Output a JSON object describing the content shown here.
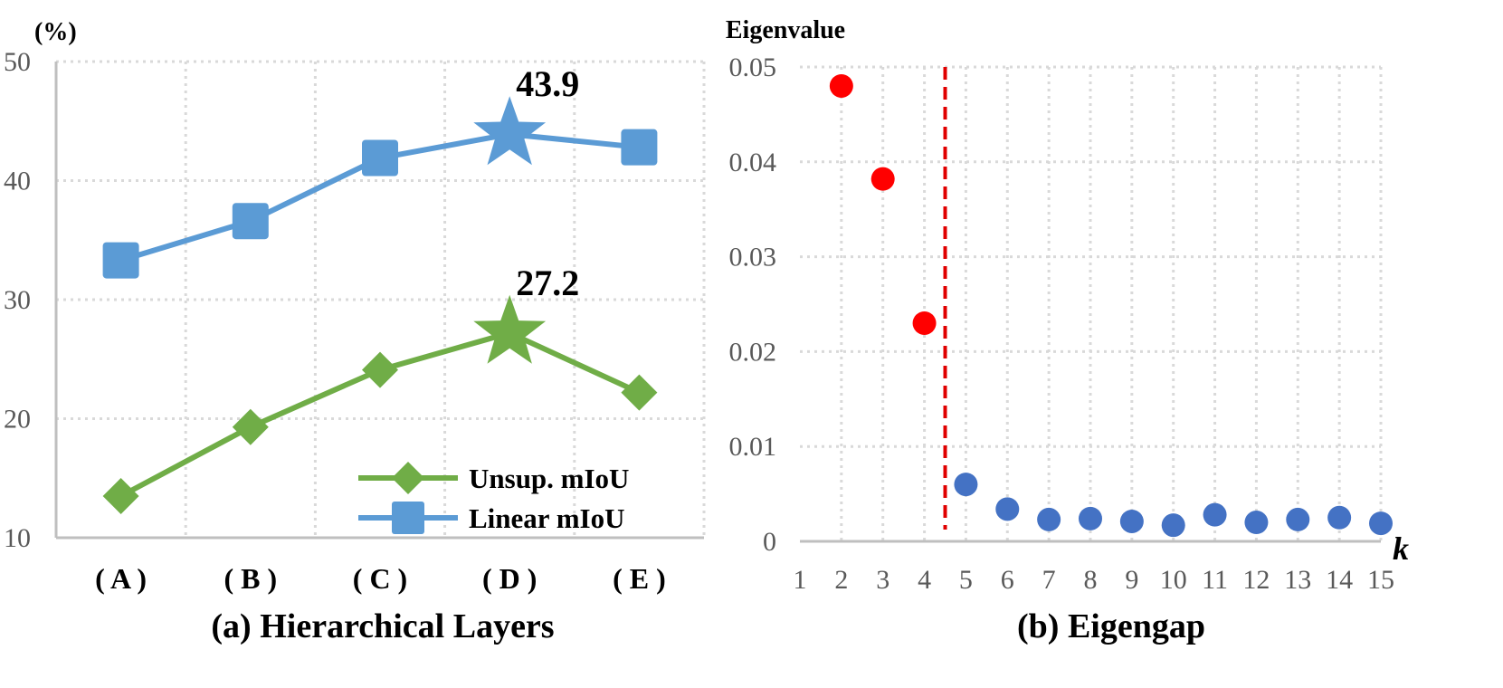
{
  "chart_data": [
    {
      "type": "line",
      "caption": "(a) Hierarchical Layers",
      "ylabel": "(%)",
      "ylim": [
        10,
        50
      ],
      "yticks": [
        10,
        20,
        30,
        40,
        50
      ],
      "grid": true,
      "categories": [
        "( A )",
        "( B )",
        "( C )",
        "( D )",
        "( E )"
      ],
      "series": [
        {
          "name": "Unsup. mIoU",
          "color": "#70ad47",
          "marker": "diamond",
          "values": [
            13.5,
            19.3,
            24.1,
            27.2,
            22.2
          ]
        },
        {
          "name": "Linear mIoU",
          "color": "#5b9bd5",
          "marker": "square",
          "values": [
            33.3,
            36.6,
            41.9,
            43.9,
            42.8
          ]
        }
      ],
      "annotations": [
        {
          "category": "( D )",
          "series": "Linear mIoU",
          "text": "43.9",
          "marker": "star"
        },
        {
          "category": "( D )",
          "series": "Unsup. mIoU",
          "text": "27.2",
          "marker": "star"
        }
      ],
      "legend": "bottom-right"
    },
    {
      "type": "scatter",
      "caption": "(b) Eigengap",
      "ylabel": "Eigenvalue",
      "xlabel": "k",
      "xlim": [
        1,
        15
      ],
      "ylim": [
        0,
        0.05
      ],
      "xticks": [
        1,
        2,
        3,
        4,
        5,
        6,
        7,
        8,
        9,
        10,
        11,
        12,
        13,
        14,
        15
      ],
      "yticks": [
        "0",
        "0.01",
        "0.02",
        "0.03",
        "0.04",
        "0.05"
      ],
      "grid": true,
      "threshold_x": 4.5,
      "threshold_color": "#e00000",
      "points": [
        {
          "x": 2,
          "y": 0.048,
          "color": "#ff0000"
        },
        {
          "x": 3,
          "y": 0.0382,
          "color": "#ff0000"
        },
        {
          "x": 4,
          "y": 0.023,
          "color": "#ff0000"
        },
        {
          "x": 5,
          "y": 0.006,
          "color": "#4472c4"
        },
        {
          "x": 6,
          "y": 0.0034,
          "color": "#4472c4"
        },
        {
          "x": 7,
          "y": 0.0023,
          "color": "#4472c4"
        },
        {
          "x": 8,
          "y": 0.0024,
          "color": "#4472c4"
        },
        {
          "x": 9,
          "y": 0.0021,
          "color": "#4472c4"
        },
        {
          "x": 10,
          "y": 0.0017,
          "color": "#4472c4"
        },
        {
          "x": 11,
          "y": 0.0028,
          "color": "#4472c4"
        },
        {
          "x": 12,
          "y": 0.002,
          "color": "#4472c4"
        },
        {
          "x": 13,
          "y": 0.0023,
          "color": "#4472c4"
        },
        {
          "x": 14,
          "y": 0.0025,
          "color": "#4472c4"
        },
        {
          "x": 15,
          "y": 0.0019,
          "color": "#4472c4"
        }
      ]
    }
  ]
}
